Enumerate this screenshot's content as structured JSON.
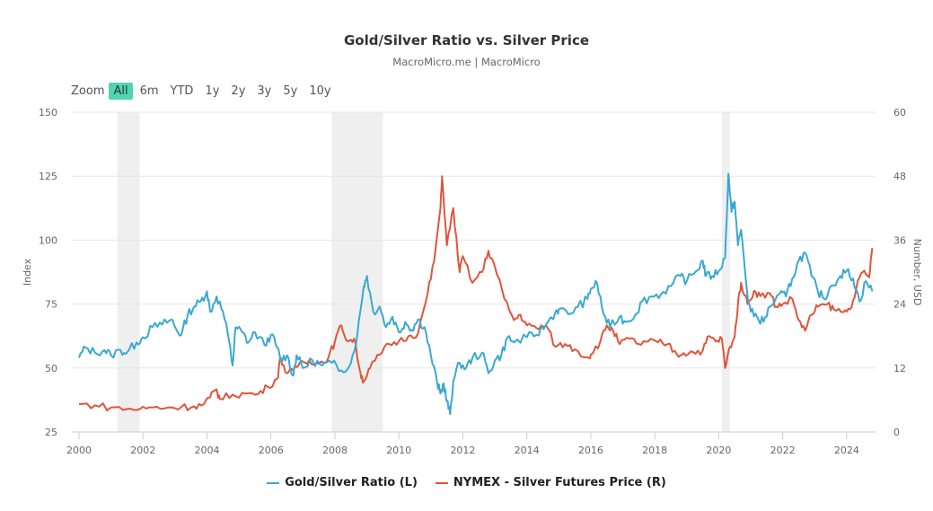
{
  "chart_data": {
    "type": "line",
    "title": "Gold/Silver Ratio vs. Silver Price",
    "subtitle": "MacroMicro.me | MacroMicro",
    "xlabel": "",
    "ylabel_left": "Index",
    "ylabel_right": "Number, USD",
    "xlim": [
      2000,
      2024.9
    ],
    "ylim_left": [
      25,
      150
    ],
    "ylim_right": [
      0,
      60
    ],
    "x_ticks": [
      "2000",
      "2002",
      "2004",
      "2006",
      "2008",
      "2010",
      "2012",
      "2014",
      "2016",
      "2018",
      "2020",
      "2022",
      "2024"
    ],
    "y_ticks_left": [
      "150",
      "125",
      "100",
      "75",
      "50",
      "25"
    ],
    "y_ticks_right": [
      "60",
      "48",
      "36",
      "24",
      "12",
      "0"
    ],
    "grid": true,
    "legend_position": "bottom",
    "shaded_periods": [
      [
        2001.2,
        2001.9
      ],
      [
        2007.9,
        2009.5
      ],
      [
        2020.1,
        2020.35
      ]
    ],
    "series": [
      {
        "name": "Gold/Silver Ratio (L)",
        "axis": "left",
        "color": "#3aa8d2",
        "points": [
          [
            2000.0,
            54
          ],
          [
            2000.2,
            58
          ],
          [
            2000.5,
            56
          ],
          [
            2000.8,
            57
          ],
          [
            2001.0,
            55
          ],
          [
            2001.3,
            57
          ],
          [
            2001.5,
            56
          ],
          [
            2001.8,
            60
          ],
          [
            2002.0,
            62
          ],
          [
            2002.3,
            66
          ],
          [
            2002.6,
            67
          ],
          [
            2002.9,
            69
          ],
          [
            2003.0,
            66
          ],
          [
            2003.2,
            63
          ],
          [
            2003.4,
            71
          ],
          [
            2003.6,
            74
          ],
          [
            2003.8,
            76
          ],
          [
            2004.0,
            80
          ],
          [
            2004.1,
            72
          ],
          [
            2004.3,
            78
          ],
          [
            2004.5,
            72
          ],
          [
            2004.7,
            60
          ],
          [
            2004.8,
            51
          ],
          [
            2004.9,
            66
          ],
          [
            2005.1,
            64
          ],
          [
            2005.3,
            60
          ],
          [
            2005.5,
            64
          ],
          [
            2005.8,
            59
          ],
          [
            2006.0,
            63
          ],
          [
            2006.2,
            58
          ],
          [
            2006.3,
            53
          ],
          [
            2006.5,
            55
          ],
          [
            2006.7,
            47
          ],
          [
            2006.8,
            55
          ],
          [
            2007.0,
            50
          ],
          [
            2007.3,
            53
          ],
          [
            2007.6,
            51
          ],
          [
            2007.9,
            52
          ],
          [
            2008.2,
            49
          ],
          [
            2008.5,
            52
          ],
          [
            2008.7,
            63
          ],
          [
            2008.9,
            82
          ],
          [
            2009.0,
            86
          ],
          [
            2009.2,
            72
          ],
          [
            2009.4,
            74
          ],
          [
            2009.6,
            66
          ],
          [
            2009.8,
            70
          ],
          [
            2010.0,
            64
          ],
          [
            2010.2,
            68
          ],
          [
            2010.4,
            65
          ],
          [
            2010.6,
            69
          ],
          [
            2010.8,
            66
          ],
          [
            2011.0,
            55
          ],
          [
            2011.2,
            44
          ],
          [
            2011.3,
            40
          ],
          [
            2011.4,
            44
          ],
          [
            2011.5,
            37
          ],
          [
            2011.6,
            32
          ],
          [
            2011.7,
            45
          ],
          [
            2011.9,
            52
          ],
          [
            2012.1,
            50
          ],
          [
            2012.3,
            54
          ],
          [
            2012.6,
            56
          ],
          [
            2012.8,
            48
          ],
          [
            2013.0,
            53
          ],
          [
            2013.2,
            55
          ],
          [
            2013.4,
            62
          ],
          [
            2013.6,
            60
          ],
          [
            2014.0,
            62
          ],
          [
            2014.3,
            63
          ],
          [
            2014.6,
            67
          ],
          [
            2014.9,
            72
          ],
          [
            2015.0,
            73
          ],
          [
            2015.3,
            71
          ],
          [
            2015.6,
            74
          ],
          [
            2015.9,
            77
          ],
          [
            2016.0,
            81
          ],
          [
            2016.2,
            83
          ],
          [
            2016.4,
            71
          ],
          [
            2016.6,
            66
          ],
          [
            2016.9,
            70
          ],
          [
            2017.1,
            68
          ],
          [
            2017.4,
            71
          ],
          [
            2017.6,
            76
          ],
          [
            2017.9,
            78
          ],
          [
            2018.2,
            79
          ],
          [
            2018.5,
            82
          ],
          [
            2018.8,
            86
          ],
          [
            2019.0,
            84
          ],
          [
            2019.3,
            88
          ],
          [
            2019.5,
            92
          ],
          [
            2019.6,
            86
          ],
          [
            2019.8,
            86
          ],
          [
            2020.0,
            88
          ],
          [
            2020.2,
            93
          ],
          [
            2020.3,
            126
          ],
          [
            2020.4,
            111
          ],
          [
            2020.5,
            115
          ],
          [
            2020.6,
            98
          ],
          [
            2020.7,
            104
          ],
          [
            2020.9,
            78
          ],
          [
            2021.0,
            72
          ],
          [
            2021.2,
            70
          ],
          [
            2021.4,
            68
          ],
          [
            2021.6,
            74
          ],
          [
            2021.9,
            79
          ],
          [
            2022.1,
            78
          ],
          [
            2022.3,
            85
          ],
          [
            2022.5,
            92
          ],
          [
            2022.7,
            95
          ],
          [
            2022.9,
            86
          ],
          [
            2023.1,
            80
          ],
          [
            2023.3,
            77
          ],
          [
            2023.5,
            82
          ],
          [
            2023.8,
            86
          ],
          [
            2024.0,
            88
          ],
          [
            2024.2,
            85
          ],
          [
            2024.4,
            76
          ],
          [
            2024.6,
            84
          ],
          [
            2024.8,
            80
          ]
        ]
      },
      {
        "name": "NYMEX - Silver Futures Price (R)",
        "axis": "right",
        "color": "#e0553a",
        "points": [
          [
            2000.0,
            5.2
          ],
          [
            2000.5,
            5.0
          ],
          [
            2001.0,
            4.6
          ],
          [
            2001.5,
            4.3
          ],
          [
            2001.9,
            4.3
          ],
          [
            2002.3,
            4.6
          ],
          [
            2002.8,
            4.6
          ],
          [
            2003.2,
            4.7
          ],
          [
            2003.6,
            4.8
          ],
          [
            2003.9,
            5.2
          ],
          [
            2004.1,
            6.5
          ],
          [
            2004.3,
            8.0
          ],
          [
            2004.4,
            6.2
          ],
          [
            2004.8,
            7.0
          ],
          [
            2005.2,
            7.2
          ],
          [
            2005.6,
            7.1
          ],
          [
            2005.9,
            8.5
          ],
          [
            2006.2,
            10.0
          ],
          [
            2006.3,
            14.0
          ],
          [
            2006.5,
            11.0
          ],
          [
            2006.7,
            11.5
          ],
          [
            2006.9,
            13.0
          ],
          [
            2007.2,
            13.5
          ],
          [
            2007.5,
            12.8
          ],
          [
            2007.8,
            14.0
          ],
          [
            2008.0,
            17.0
          ],
          [
            2008.2,
            20.0
          ],
          [
            2008.4,
            17.0
          ],
          [
            2008.6,
            17.5
          ],
          [
            2008.8,
            11.0
          ],
          [
            2008.9,
            9.5
          ],
          [
            2009.1,
            12.0
          ],
          [
            2009.4,
            14.5
          ],
          [
            2009.7,
            16.5
          ],
          [
            2010.0,
            17.0
          ],
          [
            2010.3,
            18.0
          ],
          [
            2010.6,
            18.5
          ],
          [
            2010.9,
            26.0
          ],
          [
            2011.1,
            32.0
          ],
          [
            2011.3,
            42.0
          ],
          [
            2011.35,
            48.0
          ],
          [
            2011.5,
            35.0
          ],
          [
            2011.7,
            42.0
          ],
          [
            2011.9,
            30.0
          ],
          [
            2012.0,
            33.0
          ],
          [
            2012.3,
            28.0
          ],
          [
            2012.6,
            30.0
          ],
          [
            2012.8,
            34.0
          ],
          [
            2013.0,
            31.0
          ],
          [
            2013.3,
            25.0
          ],
          [
            2013.6,
            21.0
          ],
          [
            2013.8,
            22.0
          ],
          [
            2014.0,
            20.0
          ],
          [
            2014.3,
            19.5
          ],
          [
            2014.6,
            20.0
          ],
          [
            2014.9,
            16.0
          ],
          [
            2015.2,
            16.5
          ],
          [
            2015.5,
            15.5
          ],
          [
            2015.9,
            14.0
          ],
          [
            2016.0,
            14.5
          ],
          [
            2016.3,
            17.0
          ],
          [
            2016.5,
            20.0
          ],
          [
            2016.7,
            19.0
          ],
          [
            2016.9,
            16.5
          ],
          [
            2017.2,
            17.5
          ],
          [
            2017.5,
            16.5
          ],
          [
            2017.8,
            17.0
          ],
          [
            2018.1,
            16.8
          ],
          [
            2018.4,
            16.5
          ],
          [
            2018.7,
            14.5
          ],
          [
            2018.9,
            14.8
          ],
          [
            2019.2,
            15.0
          ],
          [
            2019.5,
            15.3
          ],
          [
            2019.7,
            18.0
          ],
          [
            2019.9,
            17.0
          ],
          [
            2020.1,
            17.5
          ],
          [
            2020.2,
            12.0
          ],
          [
            2020.35,
            16.0
          ],
          [
            2020.5,
            18.0
          ],
          [
            2020.6,
            24.0
          ],
          [
            2020.7,
            28.0
          ],
          [
            2020.9,
            24.0
          ],
          [
            2021.1,
            26.5
          ],
          [
            2021.3,
            25.5
          ],
          [
            2021.6,
            26.0
          ],
          [
            2021.8,
            23.5
          ],
          [
            2022.0,
            24.0
          ],
          [
            2022.3,
            25.0
          ],
          [
            2022.5,
            21.0
          ],
          [
            2022.7,
            19.0
          ],
          [
            2022.9,
            22.0
          ],
          [
            2023.1,
            23.5
          ],
          [
            2023.4,
            24.0
          ],
          [
            2023.6,
            23.0
          ],
          [
            2023.9,
            22.5
          ],
          [
            2024.1,
            23.0
          ],
          [
            2024.3,
            27.0
          ],
          [
            2024.5,
            30.0
          ],
          [
            2024.7,
            29.0
          ],
          [
            2024.8,
            34.5
          ]
        ]
      }
    ]
  },
  "range_selector": {
    "label": "Zoom",
    "buttons": [
      "All",
      "6m",
      "YTD",
      "1y",
      "2y",
      "3y",
      "5y",
      "10y"
    ],
    "active": "All",
    "active_color": "#4fd6b1"
  },
  "legend": [
    "Gold/Silver Ratio (L)",
    "NYMEX - Silver Futures Price (R)"
  ]
}
